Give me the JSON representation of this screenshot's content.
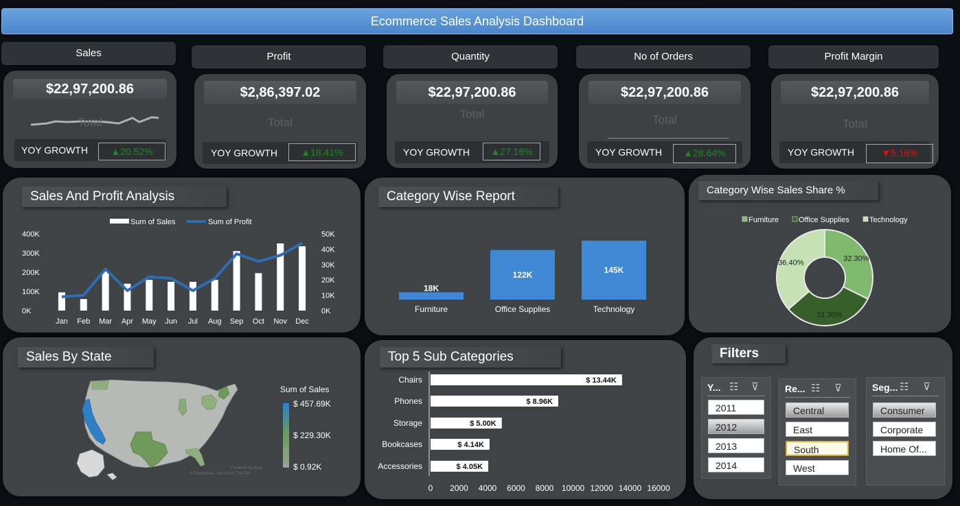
{
  "dashboard_title": "Ecommerce Sales Analysis Dashboard",
  "kpis": [
    {
      "header": "Sales",
      "value": "$22,97,200.86",
      "total": "Total",
      "yoy_label": "YOY GROWTH",
      "yoy": "▲20.52%",
      "yoy_color": "#1a8c1a",
      "sparkline": true
    },
    {
      "header": "Profit",
      "value": "$2,86,397.02",
      "total": "Total",
      "yoy_label": "YOY GROWTH",
      "yoy": "▲18.41%",
      "yoy_color": "#1a8c1a"
    },
    {
      "header": "Quantity",
      "value": "$22,97,200.86",
      "total": "Total",
      "yoy_label": "YOY GROWTH",
      "yoy": "▲27.16%",
      "yoy_color": "#1a8c1a"
    },
    {
      "header": "No of Orders",
      "value": "$22,97,200.86",
      "total": "Total",
      "yoy_label": "YOY GROWTH",
      "yoy": "▲28.64%",
      "yoy_color": "#1a8c1a"
    },
    {
      "header": "Profit Margin",
      "value": "$22,97,200.86",
      "total": "Total",
      "yoy_label": "YOY GROWTH",
      "yoy": "▼5.16%",
      "yoy_color": "#e01010"
    }
  ],
  "panels": {
    "sales_profit": "Sales And Profit Analysis",
    "category_report": "Category Wise Report",
    "category_share": "Category Wise Sales Share %",
    "sales_by_state": "Sales By State",
    "top5": "Top 5 Sub Categories",
    "filters": "Filters"
  },
  "chart_data": [
    {
      "type": "bar+line",
      "title": "Sales And Profit Analysis",
      "categories": [
        "Jan",
        "Feb",
        "Mar",
        "Apr",
        "May",
        "Jun",
        "Jul",
        "Aug",
        "Sep",
        "Oct",
        "Nov",
        "Dec"
      ],
      "series": [
        {
          "name": "Sum of Sales",
          "type": "bar",
          "axis": "left",
          "values": [
            95000,
            60000,
            205000,
            140000,
            160000,
            150000,
            150000,
            160000,
            310000,
            195000,
            350000,
            335000
          ]
        },
        {
          "name": "Sum of Profit",
          "type": "line",
          "axis": "right",
          "values": [
            9000,
            10000,
            27000,
            13000,
            22000,
            21000,
            13000,
            21000,
            37000,
            32000,
            36000,
            44000
          ]
        }
      ],
      "left_ticks": [
        "0K",
        "100K",
        "200K",
        "300K",
        "400K"
      ],
      "right_ticks": [
        "0K",
        "10K",
        "20K",
        "30K",
        "40K",
        "50K"
      ],
      "ylim_left": [
        0,
        400000
      ],
      "ylim_right": [
        0,
        50000
      ]
    },
    {
      "type": "bar",
      "title": "Category Wise Report",
      "categories": [
        "Furniture",
        "Office Supplies",
        "Technology"
      ],
      "values": [
        18,
        122,
        145
      ],
      "labels": [
        "18K",
        "122K",
        "145K"
      ]
    },
    {
      "type": "pie",
      "title": "Category Wise Sales Share %",
      "legend": [
        "Furniture",
        "Office Supplies",
        "Technology"
      ],
      "slices": [
        {
          "name": "Furniture",
          "value": 32.3,
          "label": "32.30%",
          "color": "#7fb96e"
        },
        {
          "name": "Office Supplies",
          "value": 31.3,
          "label": "31.30%",
          "color": "#375f2a"
        },
        {
          "name": "Technology",
          "value": 36.4,
          "label": "36.40%",
          "color": "#c6e2b4"
        }
      ]
    },
    {
      "type": "bar",
      "orientation": "horizontal",
      "title": "Top 5 Sub Categories",
      "categories": [
        "Chairs",
        "Phones",
        "Storage",
        "Bookcases",
        "Accessories"
      ],
      "values": [
        13440,
        8960,
        5000,
        4140,
        4050
      ],
      "labels": [
        "$ 13.44K",
        "$ 8.96K",
        "$ 5.00K",
        "$ 4.14K",
        "$ 4.05K"
      ],
      "x_ticks": [
        "0",
        "2000",
        "4000",
        "6000",
        "8000",
        "10000",
        "12000",
        "14000",
        "16000"
      ],
      "xlim": [
        0,
        16000
      ]
    }
  ],
  "map": {
    "legend_title": "Sum  of Sales",
    "legend_values": [
      "$ 457.69K",
      "$ 229.30K",
      "$ 0.92K"
    ],
    "attribution_line1": "Powered by Bing",
    "attribution_line2": "© GeoNames, Microsoft, TomTom"
  },
  "filters": {
    "year": {
      "header": "Y...",
      "items": [
        "2011",
        "2012",
        "2013",
        "2014"
      ],
      "selected": "2012"
    },
    "region": {
      "header": "Re...",
      "items": [
        "Central",
        "East",
        "South",
        "West"
      ],
      "selected": "Central",
      "highlight": "South"
    },
    "segment": {
      "header": "Seg...",
      "items": [
        "Consumer",
        "Corporate",
        "Home Of..."
      ],
      "selected": "Consumer"
    }
  }
}
